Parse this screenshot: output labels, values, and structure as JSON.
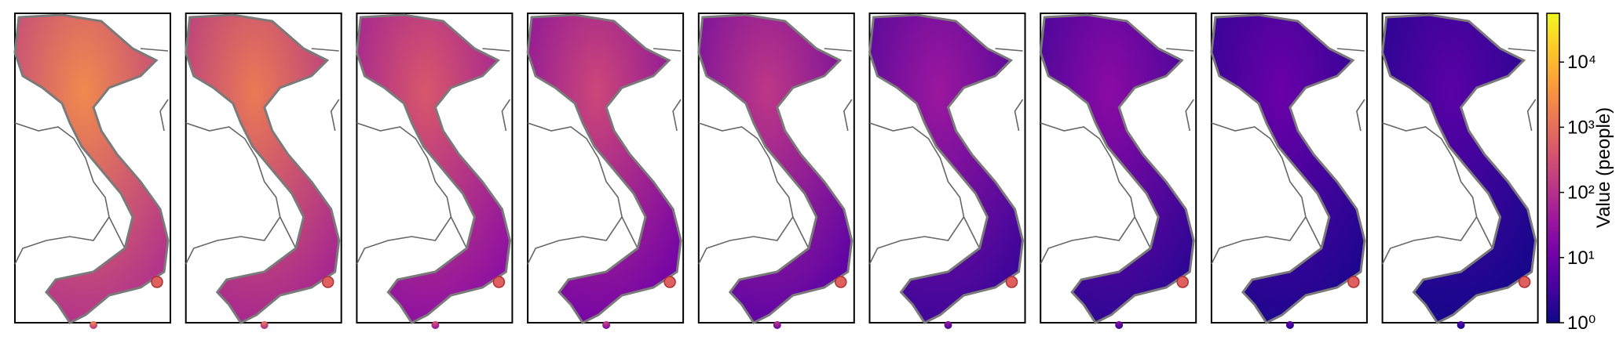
{
  "chart_data": {
    "type": "colorbar",
    "label": "Value (people)",
    "scale": "log",
    "ylim": [
      1,
      56000
    ],
    "yticks": [
      {
        "value": 1,
        "label": "10⁰"
      },
      {
        "value": 10,
        "label": "10¹"
      },
      {
        "value": 100,
        "label": "10²"
      },
      {
        "value": 1000,
        "label": "10³"
      },
      {
        "value": 10000,
        "label": "10⁴"
      }
    ],
    "colors": [
      "#0d0887",
      "#46039f",
      "#7201a8",
      "#9c179e",
      "#bd3786",
      "#d8576b",
      "#ed7953",
      "#fb9f3a",
      "#fdca26",
      "#f0f921"
    ]
  }
}
